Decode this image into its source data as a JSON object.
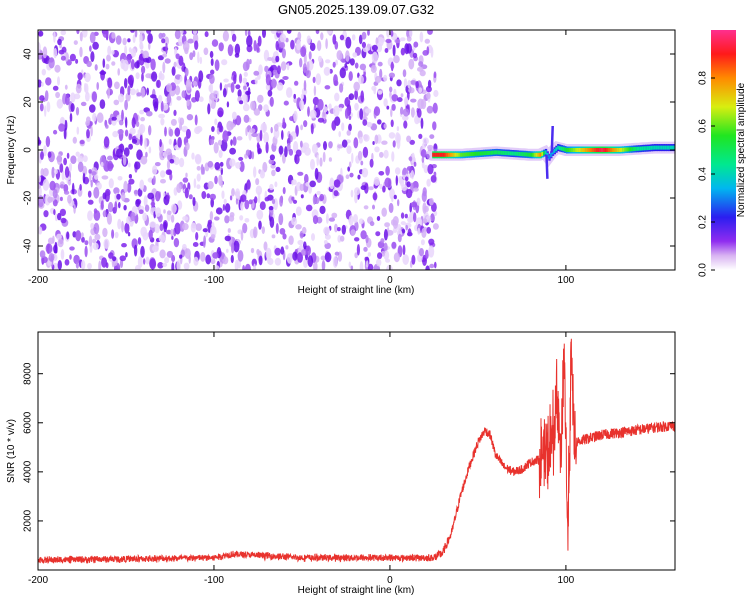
{
  "title": "GN05.2025.139.09.07.G32",
  "chart_data": [
    {
      "type": "heatmap",
      "xlabel": "Height of straight line (km)",
      "ylabel": "Frequency (Hz)",
      "xlim": [
        -200,
        162
      ],
      "ylim": [
        -50,
        50
      ],
      "xticks": [
        -200,
        -100,
        0,
        100
      ],
      "yticks": [
        -40,
        -20,
        0,
        20,
        40
      ],
      "noise_region_x": [
        -200,
        24
      ],
      "signal_trace": {
        "x": [
          24,
          30,
          40,
          50,
          60,
          70,
          80,
          85,
          88,
          90,
          92,
          95,
          100,
          110,
          120,
          130,
          140,
          150,
          162
        ],
        "freq": [
          -2,
          -2,
          -2,
          -1.5,
          -1,
          -1.5,
          -2,
          -2,
          -1,
          -3,
          -1,
          1,
          0,
          0,
          0,
          0,
          0.5,
          1,
          1
        ],
        "amplitude": [
          0.9,
          0.9,
          0.6,
          0.55,
          0.5,
          0.45,
          0.55,
          0.8,
          0.4,
          0.3,
          0.35,
          0.4,
          0.55,
          0.75,
          0.95,
          0.7,
          0.45,
          0.4,
          0.4
        ]
      },
      "colorbar": {
        "label": "Normalized spectral amplitude",
        "range": [
          0,
          1
        ],
        "ticks": [
          0,
          0.2,
          0.4,
          0.6,
          0.8
        ],
        "tick_labels": [
          "0.0",
          "0.2",
          "0.4",
          "0.6",
          "0.8"
        ]
      }
    },
    {
      "type": "line",
      "xlabel": "Height of straight line (km)",
      "ylabel": "SNR (10 * v/v)",
      "xlim": [
        -200,
        162
      ],
      "ylim": [
        0,
        9700
      ],
      "xticks": [
        -200,
        -100,
        0,
        100
      ],
      "yticks": [
        2000,
        4000,
        6000,
        8000
      ],
      "color": "#e8322d",
      "series": [
        {
          "x": [
            -200,
            -150,
            -100,
            -90,
            -50,
            0,
            25,
            30,
            35,
            40,
            45,
            50,
            54,
            57,
            60,
            65,
            70,
            75,
            80,
            85,
            90,
            93,
            95,
            97,
            99,
            101,
            103,
            105,
            110,
            120,
            130,
            140,
            150,
            162
          ],
          "values": [
            400,
            450,
            500,
            650,
            500,
            500,
            500,
            700,
            1500,
            3000,
            4200,
            5200,
            5700,
            5500,
            4700,
            4200,
            4000,
            4100,
            4400,
            4500,
            4700,
            5500,
            7000,
            4500,
            9200,
            1200,
            8500,
            5200,
            5300,
            5500,
            5600,
            5700,
            5800,
            5900
          ]
        }
      ]
    }
  ]
}
